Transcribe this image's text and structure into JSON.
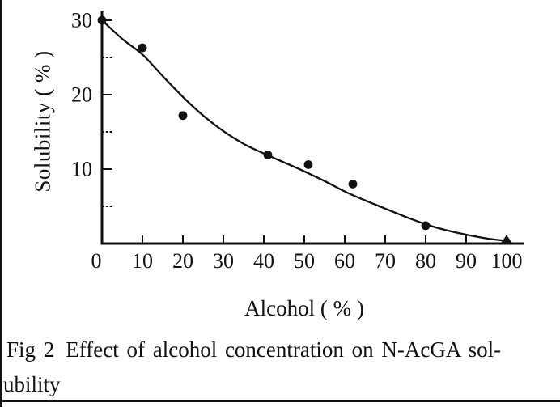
{
  "page": {
    "background_color": "#ffffff",
    "ink_color": "#111111"
  },
  "caption": {
    "fig_label": "Fig 2",
    "line1": "Effect of alcohol concentration on N-AcGA sol-",
    "line2": "ubility"
  },
  "chart_data": {
    "type": "scatter",
    "title": "Effect of alcohol concentration on N-AcGA solubility",
    "xlabel": "Alcohol ( % )",
    "ylabel": "Solubility ( % )",
    "xlim": [
      0,
      104
    ],
    "ylim": [
      0,
      31.5
    ],
    "grid": false,
    "legend_position": "none",
    "x_ticks": [
      0,
      10,
      20,
      30,
      40,
      50,
      60,
      70,
      80,
      90,
      100
    ],
    "y_ticks_major": [
      10,
      20,
      30
    ],
    "y_ticks_minor": [
      5,
      15,
      25
    ],
    "series": [
      {
        "name": "measured-solubility-points",
        "type": "scatter",
        "marker": "filled-circle",
        "points": [
          [
            0,
            30.0
          ],
          [
            10,
            26.3
          ],
          [
            20,
            17.2
          ],
          [
            41,
            11.9
          ],
          [
            51,
            10.6
          ],
          [
            62,
            8.0
          ],
          [
            80,
            2.4
          ],
          [
            100,
            0.3
          ]
        ]
      },
      {
        "name": "fitted-curve",
        "type": "line",
        "points": [
          [
            0,
            30.0
          ],
          [
            5,
            27.5
          ],
          [
            10,
            25.4
          ],
          [
            15,
            22.5
          ],
          [
            20,
            19.7
          ],
          [
            25,
            17.2
          ],
          [
            30,
            15.1
          ],
          [
            35,
            13.4
          ],
          [
            40,
            12.1
          ],
          [
            45,
            10.9
          ],
          [
            50,
            9.7
          ],
          [
            55,
            8.4
          ],
          [
            60,
            7.0
          ],
          [
            65,
            5.8
          ],
          [
            70,
            4.7
          ],
          [
            75,
            3.6
          ],
          [
            80,
            2.6
          ],
          [
            85,
            1.8
          ],
          [
            90,
            1.2
          ],
          [
            95,
            0.7
          ],
          [
            100,
            0.35
          ]
        ]
      }
    ],
    "colors": {
      "marker": "#111111",
      "line": "#111111",
      "axis": "#111111",
      "text": "#111111"
    }
  }
}
